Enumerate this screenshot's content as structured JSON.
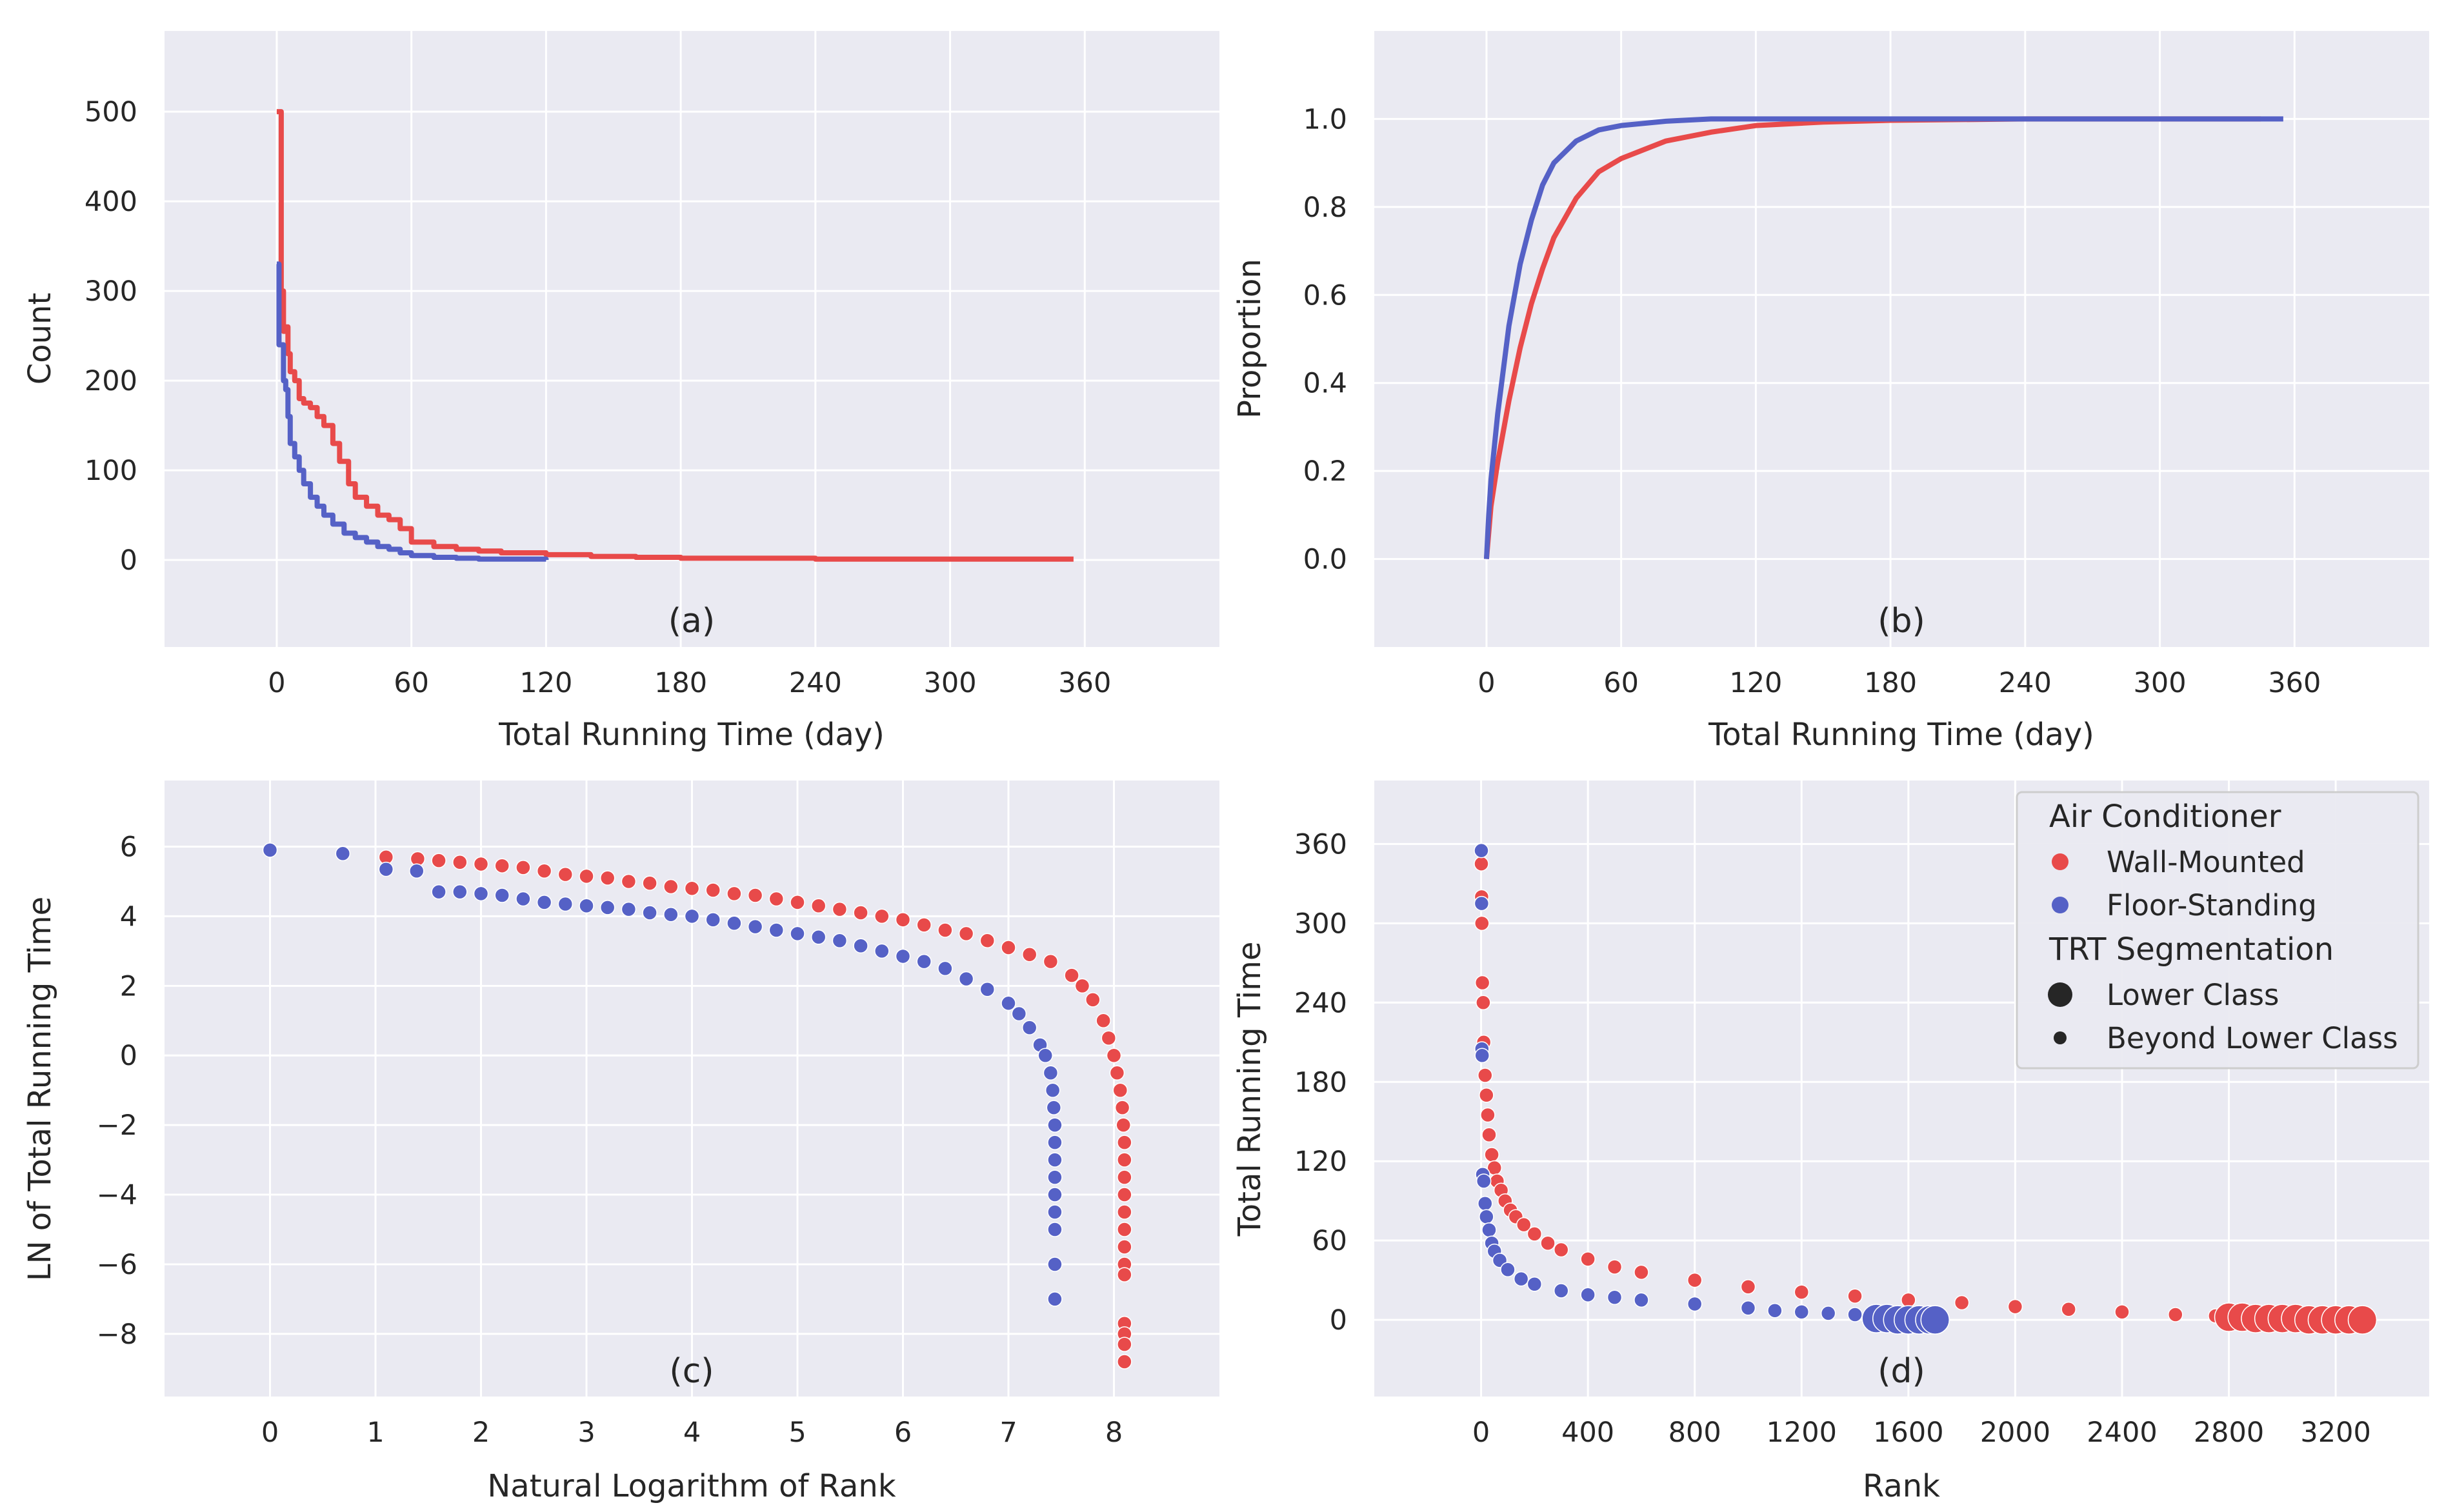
{
  "colors": {
    "wall_mounted": "#e84a4a",
    "floor_standing": "#5561c6",
    "panel_bg": "#eaeaf2",
    "grid": "#ffffff",
    "text": "#262626"
  },
  "chart_data": [
    {
      "id": "a",
      "type": "line",
      "step": true,
      "panel_label": "(a)",
      "xlabel": "Total Running Time (day)",
      "ylabel": "Count",
      "xlim": [
        -50,
        420
      ],
      "ylim": [
        -97,
        590
      ],
      "xticks": [
        "0",
        "60",
        "120",
        "180",
        "240",
        "300",
        "360"
      ],
      "yticks": [
        "0",
        "100",
        "200",
        "300",
        "400",
        "500"
      ],
      "series": [
        {
          "name": "Wall-Mounted",
          "color_key": "wall_mounted",
          "x": [
            0,
            1,
            2,
            3,
            4,
            5,
            6,
            8,
            10,
            12,
            15,
            18,
            21,
            25,
            28,
            32,
            35,
            40,
            45,
            50,
            55,
            60,
            70,
            80,
            90,
            100,
            120,
            140,
            160,
            180,
            200,
            240,
            280,
            320,
            355
          ],
          "y": [
            500,
            500,
            300,
            255,
            260,
            230,
            210,
            200,
            180,
            175,
            170,
            160,
            150,
            130,
            110,
            85,
            70,
            60,
            50,
            45,
            35,
            20,
            15,
            12,
            10,
            8,
            6,
            4,
            3,
            2,
            2,
            1,
            1,
            1,
            1
          ]
        },
        {
          "name": "Floor-Standing",
          "color_key": "floor_standing",
          "x": [
            0,
            1,
            2,
            3,
            4,
            5,
            6,
            8,
            10,
            12,
            15,
            18,
            21,
            25,
            30,
            35,
            40,
            45,
            50,
            55,
            60,
            70,
            80,
            90,
            100,
            120
          ],
          "y": [
            330,
            240,
            240,
            200,
            190,
            160,
            130,
            115,
            100,
            85,
            70,
            60,
            50,
            40,
            30,
            25,
            20,
            15,
            12,
            8,
            5,
            3,
            2,
            1,
            1,
            0
          ]
        }
      ]
    },
    {
      "id": "b",
      "type": "line",
      "panel_label": "(b)",
      "xlabel": "Total Running Time (day)",
      "ylabel": "Proportion",
      "xlim": [
        -50,
        420
      ],
      "ylim": [
        -0.2,
        1.2
      ],
      "xticks": [
        "0",
        "60",
        "120",
        "180",
        "240",
        "300",
        "360"
      ],
      "yticks": [
        "0.0",
        "0.2",
        "0.4",
        "0.6",
        "0.8",
        "1.0"
      ],
      "series": [
        {
          "name": "Wall-Mounted",
          "color_key": "wall_mounted",
          "x": [
            0,
            1,
            2,
            5,
            10,
            15,
            20,
            25,
            30,
            40,
            50,
            60,
            80,
            100,
            120,
            150,
            180,
            240,
            300,
            345
          ],
          "y": [
            0,
            0.06,
            0.12,
            0.22,
            0.36,
            0.48,
            0.58,
            0.66,
            0.73,
            0.82,
            0.88,
            0.91,
            0.95,
            0.97,
            0.985,
            0.993,
            0.997,
            1.0,
            1.0,
            1.0
          ]
        },
        {
          "name": "Floor-Standing",
          "color_key": "floor_standing",
          "x": [
            0,
            1,
            2,
            5,
            10,
            15,
            20,
            25,
            30,
            40,
            50,
            60,
            70,
            80,
            100,
            120,
            180,
            240,
            300,
            355
          ],
          "y": [
            0,
            0.1,
            0.18,
            0.33,
            0.53,
            0.67,
            0.77,
            0.85,
            0.9,
            0.95,
            0.975,
            0.985,
            0.99,
            0.995,
            1.0,
            1.0,
            1.0,
            1.0,
            1.0,
            1.0
          ]
        }
      ]
    },
    {
      "id": "c",
      "type": "scatter",
      "panel_label": "(c)",
      "xlabel": "Natural Logarithm of Rank",
      "ylabel": "LN of Total Running Time",
      "xlim": [
        -1,
        9
      ],
      "ylim": [
        -9.8,
        7.9
      ],
      "xticks": [
        "0",
        "1",
        "2",
        "3",
        "4",
        "5",
        "6",
        "7",
        "8"
      ],
      "yticks": [
        "−8",
        "−6",
        "−4",
        "−2",
        "0",
        "2",
        "4",
        "6"
      ],
      "series": [
        {
          "name": "Wall-Mounted",
          "color_key": "wall_mounted",
          "x": [
            1.1,
            1.4,
            1.6,
            1.8,
            2.0,
            2.2,
            2.4,
            2.6,
            2.8,
            3.0,
            3.2,
            3.4,
            3.6,
            3.8,
            4.0,
            4.2,
            4.4,
            4.6,
            4.8,
            5.0,
            5.2,
            5.4,
            5.6,
            5.8,
            6.0,
            6.2,
            6.4,
            6.6,
            6.8,
            7.0,
            7.2,
            7.4,
            7.6,
            7.7,
            7.8,
            7.9,
            7.95,
            8.0,
            8.03,
            8.06,
            8.08,
            8.09,
            8.1,
            8.1,
            8.1,
            8.1,
            8.1,
            8.1,
            8.1,
            8.1,
            8.1,
            8.1,
            8.1,
            8.1,
            8.1
          ],
          "y": [
            5.7,
            5.65,
            5.6,
            5.55,
            5.5,
            5.45,
            5.4,
            5.3,
            5.2,
            5.15,
            5.1,
            5.0,
            4.95,
            4.85,
            4.8,
            4.75,
            4.65,
            4.6,
            4.5,
            4.4,
            4.3,
            4.2,
            4.1,
            4.0,
            3.9,
            3.75,
            3.6,
            3.5,
            3.3,
            3.1,
            2.9,
            2.7,
            2.3,
            2.0,
            1.6,
            1.0,
            0.5,
            0,
            -0.5,
            -1.0,
            -1.5,
            -2.0,
            -2.5,
            -3.0,
            -3.5,
            -4.0,
            -4.5,
            -5.0,
            -5.5,
            -6.0,
            -6.3,
            -7.7,
            -8.0,
            -8.3,
            -8.8
          ]
        },
        {
          "name": "Floor-Standing",
          "color_key": "floor_standing",
          "x": [
            0,
            0.69,
            1.1,
            1.39,
            1.6,
            1.8,
            2.0,
            2.2,
            2.4,
            2.6,
            2.8,
            3.0,
            3.2,
            3.4,
            3.6,
            3.8,
            4.0,
            4.2,
            4.4,
            4.6,
            4.8,
            5.0,
            5.2,
            5.4,
            5.6,
            5.8,
            6.0,
            6.2,
            6.4,
            6.6,
            6.8,
            7.0,
            7.1,
            7.2,
            7.3,
            7.35,
            7.4,
            7.42,
            7.43,
            7.44,
            7.44,
            7.44,
            7.44,
            7.44,
            7.44,
            7.44,
            7.44,
            7.44
          ],
          "y": [
            5.9,
            5.8,
            5.35,
            5.3,
            4.7,
            4.7,
            4.65,
            4.6,
            4.5,
            4.4,
            4.35,
            4.3,
            4.25,
            4.2,
            4.1,
            4.05,
            4.0,
            3.9,
            3.8,
            3.7,
            3.6,
            3.5,
            3.4,
            3.3,
            3.15,
            3.0,
            2.85,
            2.7,
            2.5,
            2.2,
            1.9,
            1.5,
            1.2,
            0.8,
            0.3,
            0,
            -0.5,
            -1.0,
            -1.5,
            -2.0,
            -2.5,
            -3.0,
            -3.5,
            -4.0,
            -4.5,
            -5.0,
            -6.0,
            -7.0
          ]
        }
      ]
    },
    {
      "id": "d",
      "type": "scatter",
      "panel_label": "(d)",
      "xlabel": "Rank",
      "ylabel": "Total Running Time",
      "xlim": [
        -400,
        3550
      ],
      "ylim": [
        -58,
        408
      ],
      "xticks": [
        "0",
        "400",
        "800",
        "1200",
        "1600",
        "2000",
        "2400",
        "2800",
        "3200"
      ],
      "yticks": [
        "0",
        "60",
        "120",
        "180",
        "240",
        "300",
        "360"
      ],
      "legend": {
        "position": "top-right",
        "title1": "Air Conditioner",
        "items": [
          "Wall-Mounted",
          "Floor-Standing"
        ],
        "title2": "TRT Segmentation",
        "size_items": [
          "Lower Class",
          "Beyond Lower Class"
        ]
      },
      "series": [
        {
          "name": "Wall-Mounted",
          "color_key": "wall_mounted",
          "x": [
            1,
            2,
            3,
            5,
            8,
            10,
            15,
            20,
            25,
            30,
            40,
            50,
            60,
            75,
            90,
            110,
            130,
            160,
            200,
            250,
            300,
            400,
            500,
            600,
            800,
            1000,
            1200,
            1400,
            1600,
            1800,
            2000,
            2200,
            2400,
            2600,
            2750
          ],
          "y": [
            345,
            320,
            300,
            255,
            240,
            210,
            185,
            170,
            155,
            140,
            125,
            115,
            105,
            98,
            90,
            83,
            78,
            72,
            65,
            58,
            53,
            46,
            40,
            36,
            30,
            25,
            21,
            18,
            15,
            13,
            10,
            8,
            6,
            4,
            3
          ],
          "lower_class_x": [
            2800,
            2850,
            2900,
            2950,
            3000,
            3050,
            3100,
            3150,
            3200,
            3250,
            3300
          ],
          "lower_class_y": [
            2,
            2,
            1,
            1,
            1,
            1,
            0,
            0,
            0,
            0,
            0
          ]
        },
        {
          "name": "Floor-Standing",
          "color_key": "floor_standing",
          "x": [
            1,
            2,
            3,
            4,
            6,
            10,
            15,
            20,
            30,
            40,
            50,
            70,
            100,
            150,
            200,
            300,
            400,
            500,
            600,
            800,
            1000,
            1100,
            1200,
            1300,
            1400
          ],
          "y": [
            355,
            315,
            205,
            200,
            110,
            105,
            88,
            78,
            68,
            58,
            52,
            45,
            38,
            31,
            27,
            22,
            19,
            17,
            15,
            12,
            9,
            7,
            6,
            5,
            4
          ],
          "lower_class_x": [
            1480,
            1520,
            1560,
            1600,
            1640,
            1680,
            1700
          ],
          "lower_class_y": [
            1,
            1,
            0,
            0,
            0,
            0,
            0
          ]
        }
      ]
    }
  ]
}
